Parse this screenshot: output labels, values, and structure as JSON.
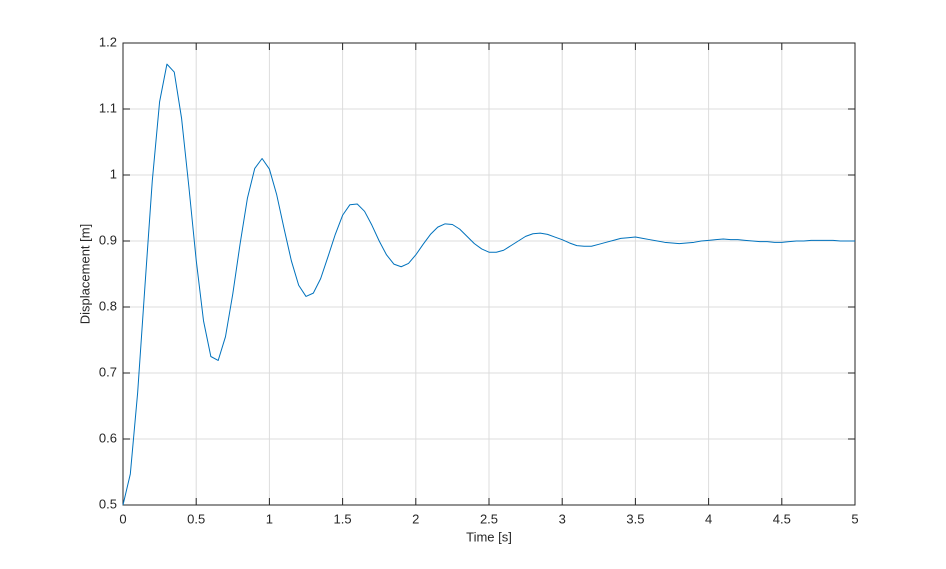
{
  "chart_data": {
    "type": "line",
    "xlabel": "Time [s]",
    "ylabel": "Displacement [m]",
    "x": [
      0,
      0.05,
      0.1,
      0.15,
      0.2,
      0.25,
      0.3,
      0.35,
      0.4,
      0.45,
      0.5,
      0.55,
      0.6,
      0.65,
      0.7,
      0.75,
      0.8,
      0.85,
      0.9,
      0.95,
      1,
      1.05,
      1.1,
      1.15,
      1.2,
      1.25,
      1.3,
      1.35,
      1.4,
      1.45,
      1.5,
      1.55,
      1.6,
      1.65,
      1.7,
      1.75,
      1.8,
      1.85,
      1.9,
      1.95,
      2,
      2.05,
      2.1,
      2.15,
      2.2,
      2.25,
      2.3,
      2.35,
      2.4,
      2.45,
      2.5,
      2.55,
      2.6,
      2.65,
      2.7,
      2.75,
      2.8,
      2.85,
      2.9,
      2.95,
      3,
      3.05,
      3.1,
      3.15,
      3.2,
      3.25,
      3.3,
      3.35,
      3.4,
      3.45,
      3.5,
      3.55,
      3.6,
      3.65,
      3.7,
      3.75,
      3.8,
      3.85,
      3.9,
      3.95,
      4,
      4.05,
      4.1,
      4.15,
      4.2,
      4.25,
      4.3,
      4.35,
      4.4,
      4.45,
      4.5,
      4.55,
      4.6,
      4.65,
      4.7,
      4.75,
      4.8,
      4.85,
      4.9,
      4.95,
      5
    ],
    "series": [
      {
        "color": "#0072bd",
        "values": [
          0.5,
          0.547,
          0.67,
          0.832,
          0.991,
          1.111,
          1.168,
          1.156,
          1.086,
          0.982,
          0.871,
          0.779,
          0.725,
          0.719,
          0.755,
          0.82,
          0.896,
          0.965,
          1.01,
          1.025,
          1.009,
          0.97,
          0.919,
          0.87,
          0.833,
          0.816,
          0.821,
          0.843,
          0.876,
          0.91,
          0.939,
          0.955,
          0.956,
          0.945,
          0.924,
          0.9,
          0.879,
          0.865,
          0.861,
          0.866,
          0.879,
          0.895,
          0.91,
          0.921,
          0.926,
          0.925,
          0.918,
          0.907,
          0.896,
          0.888,
          0.883,
          0.883,
          0.886,
          0.893,
          0.9,
          0.907,
          0.911,
          0.912,
          0.91,
          0.906,
          0.902,
          0.897,
          0.893,
          0.892,
          0.892,
          0.895,
          0.898,
          0.901,
          0.904,
          0.905,
          0.906,
          0.904,
          0.902,
          0.9,
          0.898,
          0.897,
          0.896,
          0.897,
          0.898,
          0.9,
          0.901,
          0.902,
          0.903,
          0.902,
          0.902,
          0.901,
          0.9,
          0.899,
          0.899,
          0.898,
          0.898,
          0.899,
          0.9,
          0.9,
          0.901,
          0.901,
          0.901,
          0.901,
          0.9,
          0.9,
          0.9
        ]
      }
    ],
    "xlim": [
      0,
      5
    ],
    "xticks": [
      0,
      0.5,
      1,
      1.5,
      2,
      2.5,
      3,
      3.5,
      4,
      4.5,
      5
    ],
    "ylim": [
      0.5,
      1.2
    ],
    "yticks": [
      0.5,
      0.6,
      0.7,
      0.8,
      0.9,
      1,
      1.1,
      1.2
    ],
    "grid": true
  }
}
